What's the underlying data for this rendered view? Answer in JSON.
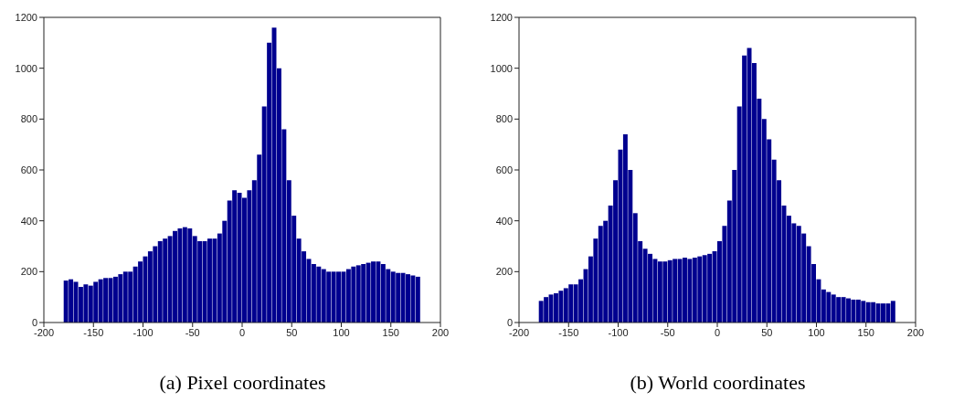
{
  "chart_data": [
    {
      "type": "histogram",
      "annotations": [
        "(a) Pixel coordinates"
      ],
      "color": "#00008f",
      "bins": [
        -180,
        -175,
        -170,
        -165,
        -160,
        -155,
        -150,
        -145,
        -140,
        -135,
        -130,
        -125,
        -120,
        -115,
        -110,
        -105,
        -100,
        -95,
        -90,
        -85,
        -80,
        -75,
        -70,
        -65,
        -60,
        -55,
        -50,
        -45,
        -40,
        -35,
        -30,
        -25,
        -20,
        -15,
        -10,
        -5,
        0,
        5,
        10,
        15,
        20,
        25,
        30,
        35,
        40,
        45,
        50,
        55,
        60,
        65,
        70,
        75,
        80,
        85,
        90,
        95,
        100,
        105,
        110,
        115,
        120,
        125,
        130,
        135,
        140,
        145,
        150,
        155,
        160,
        165,
        170,
        175,
        180
      ],
      "values": [
        165,
        170,
        160,
        140,
        150,
        145,
        160,
        170,
        175,
        175,
        180,
        190,
        200,
        200,
        220,
        240,
        260,
        280,
        300,
        320,
        330,
        340,
        360,
        370,
        375,
        370,
        340,
        320,
        320,
        330,
        330,
        350,
        400,
        480,
        520,
        510,
        490,
        520,
        560,
        660,
        850,
        1100,
        1160,
        1000,
        760,
        560,
        420,
        330,
        280,
        250,
        230,
        220,
        210,
        200,
        200,
        200,
        200,
        210,
        220,
        225,
        230,
        235,
        240,
        240,
        230,
        210,
        200,
        195,
        195,
        190,
        185,
        180
      ],
      "xlim": [
        -200,
        200
      ],
      "xticks": [
        -200,
        -150,
        -100,
        -50,
        0,
        50,
        100,
        150,
        200
      ],
      "ylim": [
        0,
        1200
      ],
      "yticks": [
        0,
        200,
        400,
        600,
        800,
        1000,
        1200
      ],
      "grid": false
    },
    {
      "type": "histogram",
      "annotations": [
        "(b) World coordinates"
      ],
      "color": "#00008f",
      "bins": [
        -180,
        -175,
        -170,
        -165,
        -160,
        -155,
        -150,
        -145,
        -140,
        -135,
        -130,
        -125,
        -120,
        -115,
        -110,
        -105,
        -100,
        -95,
        -90,
        -85,
        -80,
        -75,
        -70,
        -65,
        -60,
        -55,
        -50,
        -45,
        -40,
        -35,
        -30,
        -25,
        -20,
        -15,
        -10,
        -5,
        0,
        5,
        10,
        15,
        20,
        25,
        30,
        35,
        40,
        45,
        50,
        55,
        60,
        65,
        70,
        75,
        80,
        85,
        90,
        95,
        100,
        105,
        110,
        115,
        120,
        125,
        130,
        135,
        140,
        145,
        150,
        155,
        160,
        165,
        170,
        175,
        180
      ],
      "values": [
        85,
        100,
        110,
        115,
        125,
        135,
        150,
        150,
        170,
        210,
        260,
        330,
        380,
        400,
        460,
        560,
        680,
        740,
        600,
        430,
        320,
        290,
        270,
        250,
        240,
        240,
        245,
        250,
        250,
        255,
        250,
        255,
        260,
        265,
        270,
        280,
        320,
        380,
        480,
        600,
        850,
        1050,
        1080,
        1020,
        880,
        800,
        720,
        640,
        560,
        460,
        420,
        390,
        380,
        350,
        300,
        230,
        170,
        130,
        120,
        110,
        100,
        100,
        95,
        90,
        90,
        85,
        80,
        80,
        75,
        75,
        75,
        85
      ],
      "xlim": [
        -200,
        200
      ],
      "xticks": [
        -200,
        -150,
        -100,
        -50,
        0,
        50,
        100,
        150,
        200
      ],
      "ylim": [
        0,
        1200
      ],
      "yticks": [
        0,
        200,
        400,
        600,
        800,
        1000,
        1200
      ],
      "grid": false
    }
  ]
}
